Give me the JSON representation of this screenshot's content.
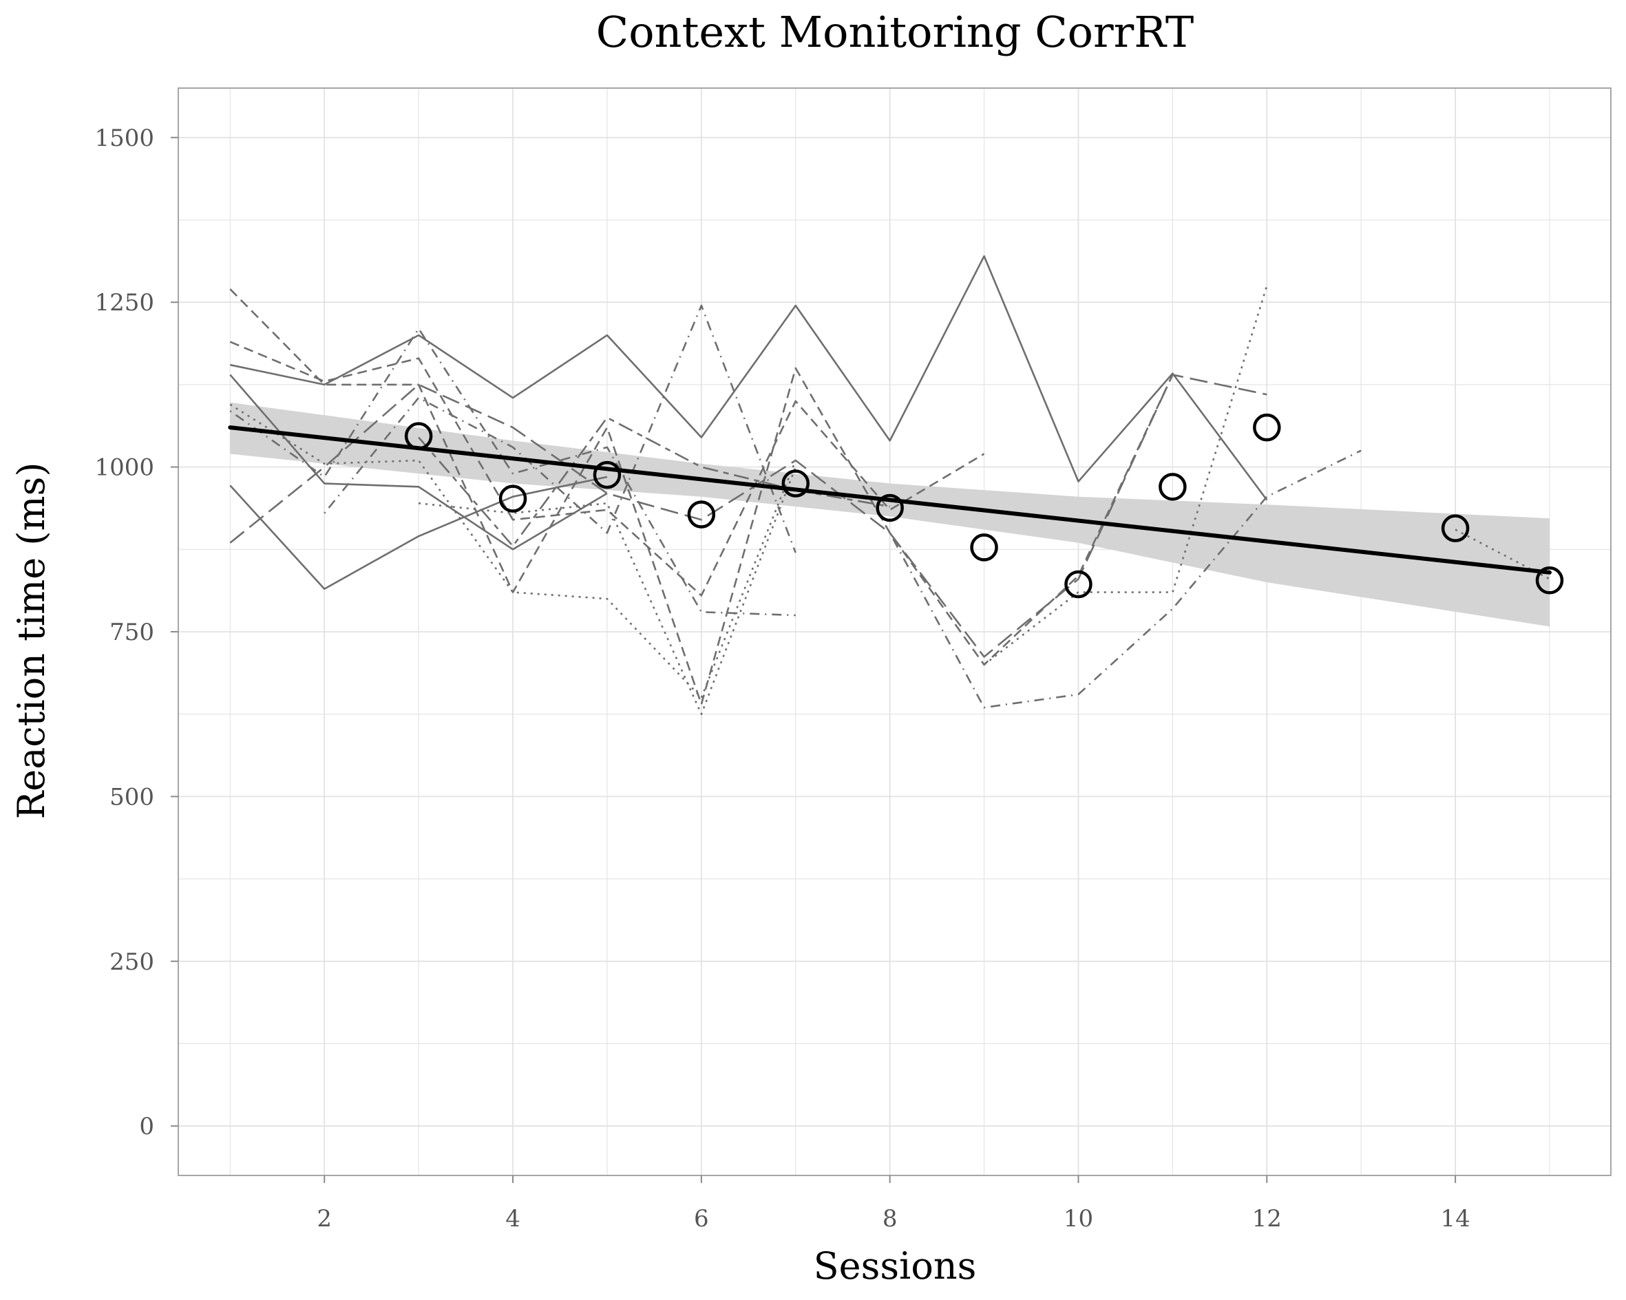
{
  "chart_data": {
    "type": "line",
    "title": "Context Monitoring CorrRT",
    "xlabel": "Sessions",
    "ylabel": "Reaction time (ms)",
    "xlim": [
      0.45,
      15.65
    ],
    "ylim": [
      -75,
      1575
    ],
    "x_ticks": [
      2,
      4,
      6,
      8,
      10,
      12,
      14
    ],
    "y_ticks": [
      0,
      250,
      500,
      750,
      1000,
      1250,
      1500
    ],
    "grid": true,
    "colors": {
      "participant_line": "#6e6e6e",
      "mean_marker": "#000000",
      "trend_line": "#000000",
      "confidence_band": "#d4d4d4",
      "grid": "#e2e2e2",
      "panel_border": "#a6a6a6"
    },
    "participant_series": [
      {
        "dash": "solid",
        "points": [
          [
            1,
            1155
          ],
          [
            2,
            1125
          ],
          [
            3,
            1200
          ],
          [
            4,
            1105
          ],
          [
            5,
            1200
          ],
          [
            6,
            1045
          ],
          [
            7,
            1245
          ],
          [
            8,
            1040
          ],
          [
            9,
            1320
          ],
          [
            10,
            978
          ],
          [
            11,
            1142
          ],
          [
            12,
            950
          ]
        ]
      },
      {
        "dash": "solid",
        "points": [
          [
            1,
            1140
          ],
          [
            2,
            975
          ],
          [
            3,
            970
          ],
          [
            4,
            875
          ],
          [
            5,
            960
          ]
        ]
      },
      {
        "dash": "solid",
        "points": [
          [
            1,
            972
          ],
          [
            2,
            815
          ],
          [
            3,
            895
          ],
          [
            4,
            955
          ],
          [
            5,
            985
          ]
        ]
      },
      {
        "dash": "longdash",
        "points": [
          [
            1,
            885
          ],
          [
            2,
            1000
          ],
          [
            3,
            1125
          ],
          [
            4,
            1060
          ],
          [
            5,
            960
          ],
          [
            6,
            920
          ],
          [
            7,
            1010
          ],
          [
            8,
            900
          ],
          [
            9,
            712
          ],
          [
            10,
            830
          ],
          [
            11,
            1140
          ],
          [
            12,
            1110
          ]
        ]
      },
      {
        "dash": "dashed",
        "points": [
          [
            1,
            1270
          ],
          [
            2,
            1125
          ],
          [
            3,
            1125
          ],
          [
            4,
            810
          ],
          [
            5,
            1060
          ],
          [
            6,
            640
          ],
          [
            7,
            1150
          ],
          [
            8,
            900
          ],
          [
            9,
            700
          ],
          [
            10,
            835
          ],
          [
            11,
            1140
          ]
        ]
      },
      {
        "dash": "dashed",
        "points": [
          [
            1,
            1190
          ],
          [
            2,
            1130
          ],
          [
            3,
            1165
          ],
          [
            4,
            920
          ],
          [
            5,
            935
          ],
          [
            6,
            805
          ],
          [
            7,
            1100
          ],
          [
            8,
            935
          ],
          [
            9,
            1020
          ]
        ]
      },
      {
        "dash": "dotdash",
        "points": [
          [
            1,
            1085
          ],
          [
            2,
            985
          ],
          [
            3,
            1210
          ],
          [
            4,
            990
          ],
          [
            5,
            1030
          ],
          [
            6,
            780
          ],
          [
            7,
            775
          ]
        ]
      },
      {
        "dash": "dotdash",
        "points": [
          [
            2,
            930
          ],
          [
            3,
            1105
          ],
          [
            4,
            1030
          ],
          [
            5,
            900
          ],
          [
            6,
            1245
          ],
          [
            7,
            870
          ]
        ]
      },
      {
        "dash": "dotdash",
        "points": [
          [
            8,
            900
          ],
          [
            9,
            635
          ],
          [
            10,
            655
          ],
          [
            11,
            785
          ],
          [
            12,
            955
          ],
          [
            13,
            1025
          ]
        ]
      },
      {
        "dash": "dotted",
        "points": [
          [
            1,
            1095
          ],
          [
            2,
            1005
          ],
          [
            3,
            1010
          ],
          [
            4,
            810
          ],
          [
            5,
            800
          ],
          [
            6,
            650
          ],
          [
            7,
            1010
          ]
        ]
      },
      {
        "dash": "dotted",
        "points": [
          [
            3,
            945
          ],
          [
            4,
            930
          ],
          [
            5,
            945
          ],
          [
            6,
            625
          ],
          [
            7,
            1000
          ]
        ]
      },
      {
        "dash": "dotted",
        "points": [
          [
            9,
            700
          ],
          [
            10,
            810
          ],
          [
            11,
            810
          ],
          [
            12,
            1275
          ]
        ]
      },
      {
        "dash": "dotted",
        "points": [
          [
            14,
            905
          ],
          [
            15,
            830
          ]
        ]
      },
      {
        "dash": "twodash",
        "points": [
          [
            3,
            1045
          ],
          [
            4,
            880
          ],
          [
            5,
            1075
          ],
          [
            6,
            1000
          ],
          [
            7,
            965
          ],
          [
            8,
            940
          ]
        ]
      }
    ],
    "means": [
      {
        "x": 3,
        "y": 1047
      },
      {
        "x": 4,
        "y": 952
      },
      {
        "x": 5,
        "y": 988
      },
      {
        "x": 6,
        "y": 928
      },
      {
        "x": 7,
        "y": 975
      },
      {
        "x": 8,
        "y": 938
      },
      {
        "x": 9,
        "y": 878
      },
      {
        "x": 10,
        "y": 822
      },
      {
        "x": 11,
        "y": 970
      },
      {
        "x": 12,
        "y": 1060
      },
      {
        "x": 14,
        "y": 907
      },
      {
        "x": 15,
        "y": 828
      }
    ],
    "trend": {
      "x": [
        1,
        15
      ],
      "y": [
        1060,
        840
      ]
    },
    "confidence_band": {
      "x": [
        1,
        4,
        6,
        8,
        10,
        12,
        15
      ],
      "lower": [
        1020,
        975,
        955,
        925,
        885,
        825,
        758
      ],
      "upper": [
        1098,
        1040,
        1005,
        975,
        955,
        943,
        922
      ]
    }
  }
}
